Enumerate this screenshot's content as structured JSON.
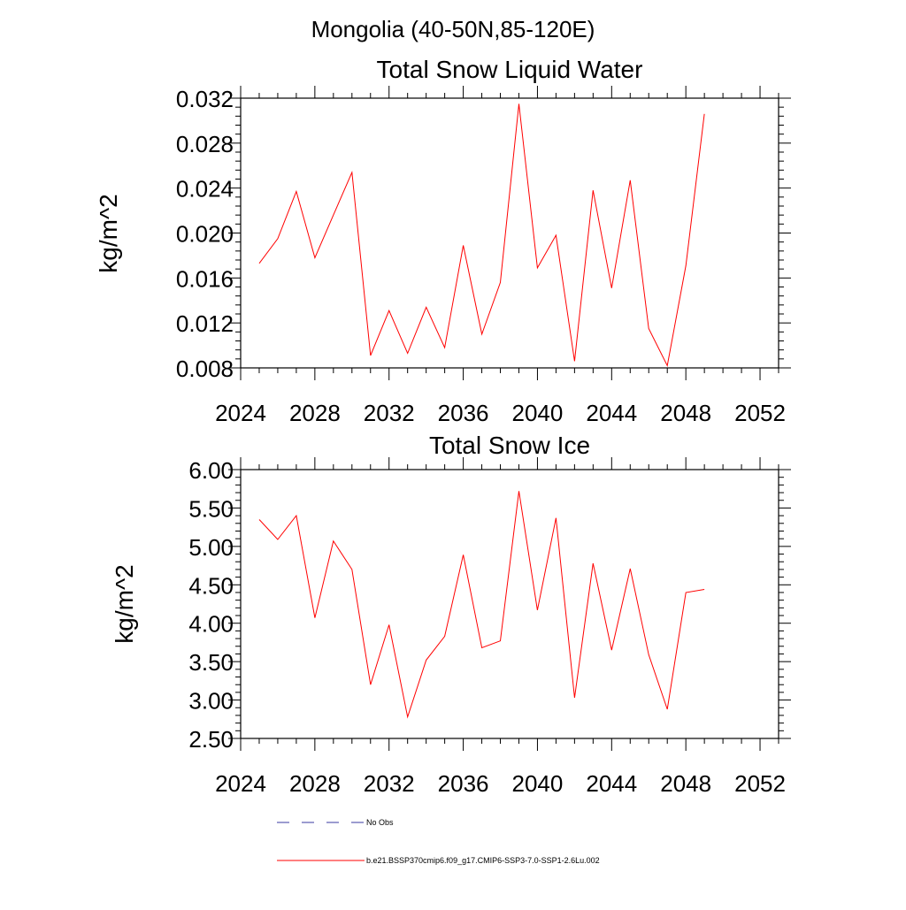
{
  "figure_title": "Mongolia (40-50N,85-120E)",
  "colors": {
    "model_line": "#ff0000",
    "obs_line": "#3a3aa0"
  },
  "legend": [
    {
      "label": "No Obs",
      "style": "dashed",
      "color": "#3a3aa0"
    },
    {
      "label": "b.e21.BSSP370cmip6.f09_g17.CMIP6-SSP3-7.0-SSP1-2.6Lu.002",
      "style": "solid",
      "color": "#ff0000"
    }
  ],
  "chart_data": [
    {
      "type": "line",
      "title": "Total Snow Liquid Water",
      "xlabel": "",
      "ylabel": "kg/m^2",
      "xlim": [
        2024,
        2053
      ],
      "ylim": [
        0.008,
        0.032
      ],
      "xticks": [
        "2024",
        "2028",
        "2032",
        "2036",
        "2040",
        "2044",
        "2048",
        "2052"
      ],
      "yticks": [
        "0.008",
        "0.012",
        "0.016",
        "0.020",
        "0.024",
        "0.028",
        "0.032"
      ],
      "grid": false,
      "x": [
        2025,
        2026,
        2027,
        2028,
        2029,
        2030,
        2031,
        2032,
        2033,
        2034,
        2035,
        2036,
        2037,
        2038,
        2039,
        2040,
        2041,
        2042,
        2043,
        2044,
        2045,
        2046,
        2047,
        2048,
        2049
      ],
      "series": [
        {
          "values": [
            0.0173,
            0.0195,
            0.0237,
            0.0178,
            0.0216,
            0.0254,
            0.0091,
            0.0131,
            0.0093,
            0.0134,
            0.0098,
            0.0189,
            0.011,
            0.0156,
            0.0315,
            0.0169,
            0.0198,
            0.0086,
            0.0238,
            0.0151,
            0.0247,
            0.0115,
            0.0082,
            0.0171,
            0.0306
          ]
        }
      ]
    },
    {
      "type": "line",
      "title": "Total Snow Ice",
      "xlabel": "",
      "ylabel": "kg/m^2",
      "xlim": [
        2024,
        2053
      ],
      "ylim": [
        2.5,
        6.0
      ],
      "xticks": [
        "2024",
        "2028",
        "2032",
        "2036",
        "2040",
        "2044",
        "2048",
        "2052"
      ],
      "yticks": [
        "2.50",
        "3.00",
        "3.50",
        "4.00",
        "4.50",
        "5.00",
        "5.50",
        "6.00"
      ],
      "grid": false,
      "x": [
        2025,
        2026,
        2027,
        2028,
        2029,
        2030,
        2031,
        2032,
        2033,
        2034,
        2035,
        2036,
        2037,
        2038,
        2039,
        2040,
        2041,
        2042,
        2043,
        2044,
        2045,
        2046,
        2047,
        2048,
        2049
      ],
      "series": [
        {
          "values": [
            5.35,
            5.09,
            5.4,
            4.07,
            5.07,
            4.7,
            3.2,
            3.98,
            2.78,
            3.52,
            3.83,
            4.89,
            3.68,
            3.77,
            5.72,
            4.17,
            5.37,
            3.03,
            4.78,
            3.65,
            4.71,
            3.59,
            2.88,
            4.4,
            4.44
          ]
        }
      ]
    }
  ]
}
